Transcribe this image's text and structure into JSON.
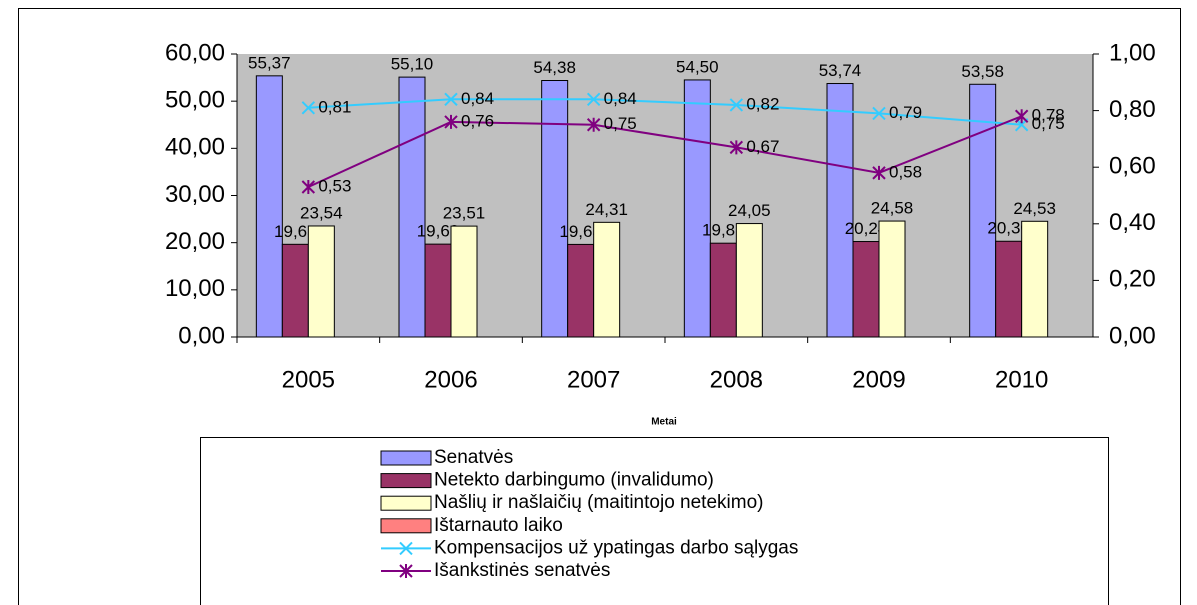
{
  "chart_data": {
    "type": "bar",
    "x_label": "Metai",
    "categories": [
      "2005",
      "2006",
      "2007",
      "2008",
      "2009",
      "2010"
    ],
    "ylim": [
      0,
      60
    ],
    "yticks": [
      {
        "value": 0,
        "label": "0,00"
      },
      {
        "value": 10,
        "label": "10,00"
      },
      {
        "value": 20,
        "label": "20,00"
      },
      {
        "value": 30,
        "label": "30,00"
      },
      {
        "value": 40,
        "label": "40,00"
      },
      {
        "value": 50,
        "label": "50,00"
      },
      {
        "value": 60,
        "label": "60,00"
      }
    ],
    "y2lim": [
      0,
      1
    ],
    "y2ticks": [
      {
        "value": 0,
        "label": "0,00"
      },
      {
        "value": 0.2,
        "label": "0,20"
      },
      {
        "value": 0.4,
        "label": "0,40"
      },
      {
        "value": 0.6,
        "label": "0,60"
      },
      {
        "value": 0.8,
        "label": "0,80"
      },
      {
        "value": 1,
        "label": "1,00"
      }
    ],
    "series": [
      {
        "name": "Senatvės",
        "type": "bar",
        "color": "#9999ff",
        "values": [
          55.37,
          55.1,
          54.38,
          54.5,
          53.74,
          53.58
        ],
        "value_labels": [
          "55,37",
          "55,10",
          "54,38",
          "54,50",
          "53,74",
          "53,58"
        ]
      },
      {
        "name": "Netekto darbingumo (invalidumo)",
        "type": "bar",
        "color": "#993366",
        "values": [
          19.65,
          19.69,
          19.63,
          19.89,
          20.24,
          20.3
        ],
        "value_labels": [
          "19,65",
          "19,69",
          "19,63",
          "19,89",
          "20,24",
          "20,30"
        ]
      },
      {
        "name": "Našlių ir našlaičių (maitintojo netekimo)",
        "type": "bar",
        "color": "#ffffcc",
        "values": [
          23.54,
          23.51,
          24.31,
          24.05,
          24.58,
          24.53
        ],
        "value_labels": [
          "23,54",
          "23,51",
          "24,31",
          "24,05",
          "24,58",
          "24,53"
        ]
      },
      {
        "name": "Ištarnauto laiko",
        "type": "bar",
        "color": "#ff8080",
        "values": [
          null,
          null,
          null,
          null,
          null,
          null
        ]
      },
      {
        "name": "Kompensacijos už ypatingas darbo sąlygas",
        "type": "line",
        "marker": "x",
        "axis": "y2",
        "color": "#33ccff",
        "values": [
          0.81,
          0.84,
          0.84,
          0.82,
          0.79,
          0.75
        ],
        "value_labels": [
          "0,81",
          "0,84",
          "0,84",
          "0,82",
          "0,79",
          "0,75"
        ]
      },
      {
        "name": "Išankstinės senatvės",
        "type": "line",
        "marker": "star",
        "axis": "y2",
        "color": "#800080",
        "values": [
          0.53,
          0.76,
          0.75,
          0.67,
          0.58,
          0.78
        ],
        "value_labels": [
          "0,53",
          "0,76",
          "0,75",
          "0,67",
          "0,58",
          "0,78"
        ]
      }
    ]
  }
}
